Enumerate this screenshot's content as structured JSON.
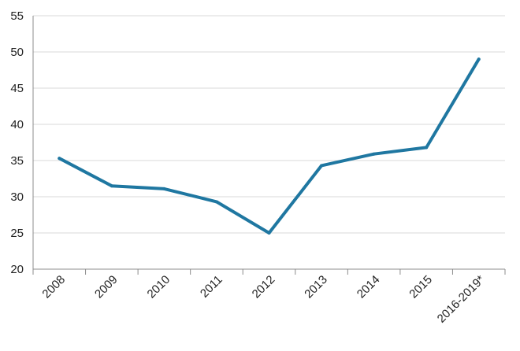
{
  "chart_data": {
    "type": "line",
    "title": "",
    "xlabel": "",
    "ylabel": "",
    "categories": [
      "2008",
      "2009",
      "2010",
      "2011",
      "2012",
      "2013",
      "2014",
      "2015",
      "2016-2019*"
    ],
    "series": [
      {
        "values": [
          35.3,
          31.5,
          31.1,
          29.3,
          25.0,
          34.3,
          35.9,
          36.8,
          49.0
        ],
        "color": "#1f77a1"
      }
    ],
    "ylim": [
      20,
      55
    ],
    "yticks": [
      20,
      25,
      30,
      35,
      40,
      45,
      50,
      55
    ],
    "grid": true,
    "legend": "none"
  }
}
